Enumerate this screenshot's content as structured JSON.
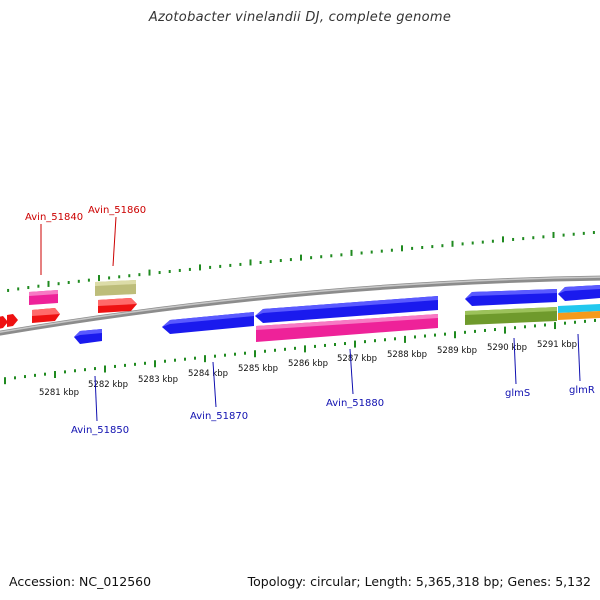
{
  "title": "Azotobacter vinelandii DJ, complete genome",
  "footer": {
    "accession": "Accession: NC_012560",
    "summary": "Topology: circular; Length: 5,365,318 bp; Genes: 5,132"
  },
  "colors": {
    "backbone": "#8c8c8c",
    "tick": "#1f8a1f",
    "red": "#ee1111",
    "pink": "#ee2299",
    "khaki": "#bdbd7a",
    "blue": "#1a1aee",
    "olive": "#6f9a2c",
    "cyan": "#22c8ee",
    "orange": "#f59a1a",
    "label_red": "#cc0000",
    "label_blue": "#1010b0"
  },
  "ruler_labels": [
    {
      "text": "5281 kbp",
      "kbp": 5281
    },
    {
      "text": "5282 kbp",
      "kbp": 5282
    },
    {
      "text": "5283 kbp",
      "kbp": 5283
    },
    {
      "text": "5284 kbp",
      "kbp": 5284
    },
    {
      "text": "5285 kbp",
      "kbp": 5285
    },
    {
      "text": "5286 kbp",
      "kbp": 5286
    },
    {
      "text": "5287 kbp",
      "kbp": 5287
    },
    {
      "text": "5288 kbp",
      "kbp": 5288
    },
    {
      "text": "5289 kbp",
      "kbp": 5289
    },
    {
      "text": "5290 kbp",
      "kbp": 5290
    },
    {
      "text": "5291 kbp",
      "kbp": 5291
    }
  ],
  "gene_labels": [
    {
      "text": "Avin_51840",
      "color": "red"
    },
    {
      "text": "Avin_51860",
      "color": "red"
    },
    {
      "text": "Avin_51850",
      "color": "blue"
    },
    {
      "text": "Avin_51870",
      "color": "blue"
    },
    {
      "text": "Avin_51880",
      "color": "blue"
    },
    {
      "text": "glmS",
      "color": "blue"
    },
    {
      "text": "glmR",
      "color": "blue"
    }
  ]
}
